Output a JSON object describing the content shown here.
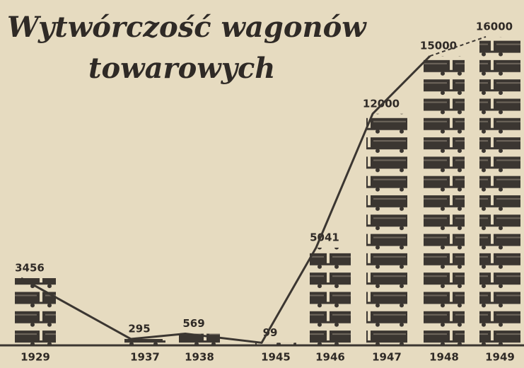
{
  "chart_data": {
    "type": "pictogram",
    "title": [
      "Wytwórczość wagonów",
      "towarowych"
    ],
    "categories": [
      "1929",
      "1937",
      "1938",
      "1945",
      "1946",
      "1947",
      "1948",
      "1949"
    ],
    "values": [
      3456,
      295,
      569,
      99,
      5041,
      12000,
      15000,
      16000
    ],
    "color": "#3b3631"
  }
}
